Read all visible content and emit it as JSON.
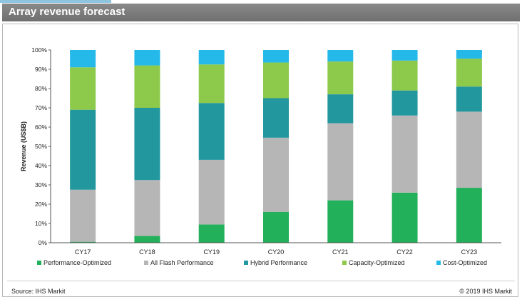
{
  "header": {
    "title": "Array revenue forecast"
  },
  "footer": {
    "source": "Source: IHS Markit",
    "copyright": "© 2019 IHS Markit"
  },
  "chart_data": {
    "type": "bar",
    "stacked": true,
    "title": "Array revenue forecast",
    "xlabel": "",
    "ylabel": "Revenue (US$B)",
    "ylim": [
      0,
      100
    ],
    "y_ticks": [
      "0%",
      "10%",
      "20%",
      "30%",
      "40%",
      "50%",
      "60%",
      "70%",
      "80%",
      "90%",
      "100%"
    ],
    "grid": false,
    "legend": "bottom",
    "categories": [
      "CY17",
      "CY18",
      "CY19",
      "CY20",
      "CY21",
      "CY22",
      "CY23"
    ],
    "series": [
      {
        "name": "Performance-Optimized",
        "color": "#22b05a",
        "values": [
          0.5,
          3.5,
          9.5,
          16,
          22,
          26,
          28.5
        ]
      },
      {
        "name": "All Flash Performance",
        "color": "#b6b6b6",
        "values": [
          27,
          29,
          33.5,
          38.5,
          40,
          40,
          39.5
        ]
      },
      {
        "name": "Hybrid Performance",
        "color": "#23979e",
        "values": [
          41.5,
          37.5,
          29.5,
          20.5,
          15,
          13,
          13
        ]
      },
      {
        "name": "Capacity-Optimized",
        "color": "#8dc94b",
        "values": [
          22,
          22,
          20,
          18.5,
          17,
          15.5,
          14.5
        ]
      },
      {
        "name": "Cost-Optimized",
        "color": "#25b9ea",
        "values": [
          9,
          8,
          7.5,
          6.5,
          6,
          5.5,
          4.5
        ]
      }
    ]
  }
}
